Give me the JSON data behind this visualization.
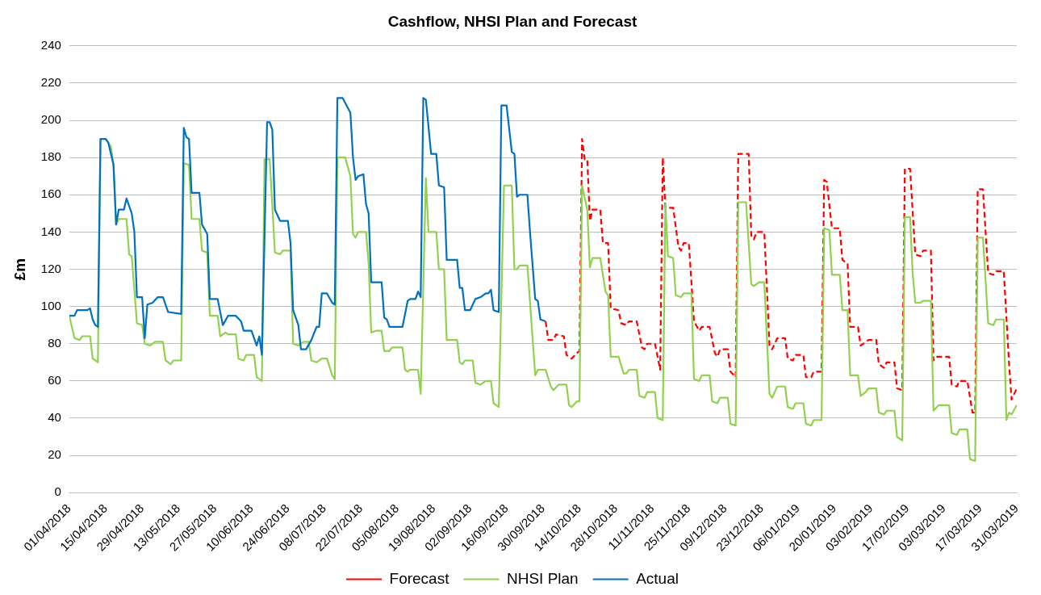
{
  "chart_data": {
    "type": "line",
    "title": "Cashflow, NHSI Plan and Forecast",
    "ylabel": "£m",
    "xlim": [
      "2018-04-01",
      "2019-03-31"
    ],
    "xticks": [
      {
        "value": "2018-04-01",
        "label": "01/04/2018"
      },
      {
        "value": "2018-04-15",
        "label": "15/04/2018"
      },
      {
        "value": "2018-04-29",
        "label": "29/04/2018"
      },
      {
        "value": "2018-05-13",
        "label": "13/05/2018"
      },
      {
        "value": "2018-05-27",
        "label": "27/05/2018"
      },
      {
        "value": "2018-06-10",
        "label": "10/06/2018"
      },
      {
        "value": "2018-06-24",
        "label": "24/06/2018"
      },
      {
        "value": "2018-07-08",
        "label": "08/07/2018"
      },
      {
        "value": "2018-07-22",
        "label": "22/07/2018"
      },
      {
        "value": "2018-08-05",
        "label": "05/08/2018"
      },
      {
        "value": "2018-08-19",
        "label": "19/08/2018"
      },
      {
        "value": "2018-09-02",
        "label": "02/09/2018"
      },
      {
        "value": "2018-09-16",
        "label": "16/09/2018"
      },
      {
        "value": "2018-09-30",
        "label": "30/09/2018"
      },
      {
        "value": "2018-10-14",
        "label": "14/10/2018"
      },
      {
        "value": "2018-10-28",
        "label": "28/10/2018"
      },
      {
        "value": "2018-11-11",
        "label": "11/11/2018"
      },
      {
        "value": "2018-11-25",
        "label": "25/11/2018"
      },
      {
        "value": "2018-12-09",
        "label": "09/12/2018"
      },
      {
        "value": "2018-12-23",
        "label": "23/12/2018"
      },
      {
        "value": "2019-01-06",
        "label": "06/01/2019"
      },
      {
        "value": "2019-01-20",
        "label": "20/01/2019"
      },
      {
        "value": "2019-02-03",
        "label": "03/02/2019"
      },
      {
        "value": "2019-02-17",
        "label": "17/02/2019"
      },
      {
        "value": "2019-03-03",
        "label": "03/03/2019"
      },
      {
        "value": "2019-03-17",
        "label": "17/03/2019"
      },
      {
        "value": "2019-03-31",
        "label": "31/03/2019"
      }
    ],
    "ylim": [
      0,
      240
    ],
    "yticks": [
      0,
      20,
      40,
      60,
      80,
      100,
      120,
      140,
      160,
      180,
      200,
      220,
      240
    ],
    "grid": "y",
    "legend": "bottom",
    "marker": "none",
    "series": [
      {
        "name": "Forecast",
        "color": "#ff0000",
        "line_style": "dashed",
        "x": [
          "2018-10-01",
          "2018-10-02",
          "2018-10-04",
          "2018-10-05",
          "2018-10-08",
          "2018-10-09",
          "2018-10-11",
          "2018-10-13",
          "2018-10-14",
          "2018-10-15",
          "2018-10-16",
          "2018-10-17",
          "2018-10-18",
          "2018-10-19",
          "2018-10-22",
          "2018-10-23",
          "2018-10-25",
          "2018-10-26",
          "2018-10-29",
          "2018-10-30",
          "2018-11-01",
          "2018-11-02",
          "2018-11-05",
          "2018-11-07",
          "2018-11-08",
          "2018-11-09",
          "2018-11-12",
          "2018-11-14",
          "2018-11-15",
          "2018-11-16",
          "2018-11-19",
          "2018-11-21",
          "2018-11-22",
          "2018-11-23",
          "2018-11-25",
          "2018-11-27",
          "2018-11-29",
          "2018-11-30",
          "2018-12-03",
          "2018-12-05",
          "2018-12-06",
          "2018-12-07",
          "2018-12-10",
          "2018-12-11",
          "2018-12-13",
          "2018-12-14",
          "2018-12-18",
          "2018-12-19",
          "2018-12-20",
          "2018-12-21",
          "2018-12-24",
          "2018-12-26",
          "2018-12-27",
          "2018-12-29",
          "2019-01-01",
          "2019-01-02",
          "2019-01-04",
          "2019-01-05",
          "2019-01-08",
          "2019-01-09",
          "2019-01-11",
          "2019-01-12",
          "2019-01-15",
          "2019-01-16",
          "2019-01-17",
          "2019-01-19",
          "2019-01-22",
          "2019-01-23",
          "2019-01-25",
          "2019-01-26",
          "2019-01-29",
          "2019-01-30",
          "2019-02-01",
          "2019-02-02",
          "2019-02-05",
          "2019-02-06",
          "2019-02-08",
          "2019-02-09",
          "2019-02-12",
          "2019-02-13",
          "2019-02-15",
          "2019-02-16",
          "2019-02-18",
          "2019-02-20",
          "2019-02-22",
          "2019-02-23",
          "2019-02-26",
          "2019-02-27",
          "2019-02-28",
          "2019-03-05",
          "2019-03-06",
          "2019-03-08",
          "2019-03-09",
          "2019-03-12",
          "2019-03-14",
          "2019-03-15",
          "2019-03-16",
          "2019-03-18",
          "2019-03-20",
          "2019-03-22",
          "2019-03-23",
          "2019-03-26",
          "2019-03-28",
          "2019-03-29",
          "2019-03-31"
        ],
        "values": [
          92,
          82,
          82,
          85,
          84,
          74,
          72,
          75,
          76,
          190,
          179,
          179,
          146,
          152,
          152,
          134,
          134,
          99,
          98,
          91,
          90,
          92,
          92,
          78,
          77,
          80,
          80,
          66,
          180,
          153,
          153,
          132,
          130,
          134,
          134,
          92,
          87,
          89,
          89,
          75,
          73,
          77,
          77,
          65,
          62,
          182,
          182,
          138,
          136,
          140,
          140,
          79,
          77,
          83,
          83,
          72,
          71,
          74,
          74,
          62,
          62,
          65,
          65,
          168,
          167,
          142,
          142,
          125,
          123,
          89,
          89,
          79,
          81,
          82,
          82,
          69,
          67,
          70,
          70,
          56,
          55,
          174,
          174,
          128,
          127,
          130,
          130,
          71,
          73,
          73,
          58,
          57,
          60,
          60,
          43,
          43,
          163,
          163,
          118,
          117,
          119,
          119,
          70,
          50,
          56
        ]
      },
      {
        "name": "NHSI Plan",
        "color": "#92d050",
        "line_style": "solid",
        "x": [
          "2018-04-01",
          "2018-04-03",
          "2018-04-05",
          "2018-04-06",
          "2018-04-09",
          "2018-04-10",
          "2018-04-11",
          "2018-04-12",
          "2018-04-13",
          "2018-04-15",
          "2018-04-17",
          "2018-04-18",
          "2018-04-19",
          "2018-04-20",
          "2018-04-23",
          "2018-04-24",
          "2018-04-25",
          "2018-04-27",
          "2018-04-29",
          "2018-04-30",
          "2018-05-02",
          "2018-05-04",
          "2018-05-07",
          "2018-05-08",
          "2018-05-10",
          "2018-05-11",
          "2018-05-14",
          "2018-05-15",
          "2018-05-17",
          "2018-05-18",
          "2018-05-21",
          "2018-05-22",
          "2018-05-24",
          "2018-05-25",
          "2018-05-28",
          "2018-05-29",
          "2018-05-31",
          "2018-06-01",
          "2018-06-04",
          "2018-06-05",
          "2018-06-07",
          "2018-06-08",
          "2018-06-11",
          "2018-06-12",
          "2018-06-14",
          "2018-06-15",
          "2018-06-17",
          "2018-06-19",
          "2018-06-21",
          "2018-06-22",
          "2018-06-25",
          "2018-06-26",
          "2018-06-28",
          "2018-06-30",
          "2018-07-02",
          "2018-07-03",
          "2018-07-05",
          "2018-07-07",
          "2018-07-09",
          "2018-07-11",
          "2018-07-12",
          "2018-07-13",
          "2018-07-16",
          "2018-07-18",
          "2018-07-19",
          "2018-07-20",
          "2018-07-21",
          "2018-07-24",
          "2018-07-25",
          "2018-07-26",
          "2018-07-28",
          "2018-07-30",
          "2018-07-31",
          "2018-08-02",
          "2018-08-03",
          "2018-08-07",
          "2018-08-08",
          "2018-08-09",
          "2018-08-10",
          "2018-08-13",
          "2018-08-14",
          "2018-08-16",
          "2018-08-17",
          "2018-08-20",
          "2018-08-21",
          "2018-08-23",
          "2018-08-24",
          "2018-08-28",
          "2018-08-29",
          "2018-08-30",
          "2018-08-31",
          "2018-09-03",
          "2018-09-04",
          "2018-09-06",
          "2018-09-08",
          "2018-09-10",
          "2018-09-11",
          "2018-09-13",
          "2018-09-15",
          "2018-09-18",
          "2018-09-19",
          "2018-09-20",
          "2018-09-21",
          "2018-09-24",
          "2018-09-27",
          "2018-09-28",
          "2018-10-01",
          "2018-10-03",
          "2018-10-04",
          "2018-10-06",
          "2018-10-09",
          "2018-10-10",
          "2018-10-11",
          "2018-10-13",
          "2018-10-14",
          "2018-10-15",
          "2018-10-17",
          "2018-10-18",
          "2018-10-19",
          "2018-10-22",
          "2018-10-24",
          "2018-10-25",
          "2018-10-26",
          "2018-10-29",
          "2018-10-31",
          "2018-11-01",
          "2018-11-02",
          "2018-11-05",
          "2018-11-06",
          "2018-11-08",
          "2018-11-09",
          "2018-11-12",
          "2018-11-13",
          "2018-11-15",
          "2018-11-16",
          "2018-11-17",
          "2018-11-19",
          "2018-11-20",
          "2018-11-22",
          "2018-11-23",
          "2018-11-26",
          "2018-11-27",
          "2018-11-29",
          "2018-11-30",
          "2018-12-03",
          "2018-12-04",
          "2018-12-06",
          "2018-12-07",
          "2018-12-10",
          "2018-12-11",
          "2018-12-13",
          "2018-12-14",
          "2018-12-17",
          "2018-12-19",
          "2018-12-20",
          "2018-12-22",
          "2018-12-24",
          "2018-12-26",
          "2018-12-27",
          "2018-12-29",
          "2019-01-01",
          "2019-01-02",
          "2019-01-04",
          "2019-01-05",
          "2019-01-08",
          "2019-01-09",
          "2019-01-11",
          "2019-01-12",
          "2019-01-15",
          "2019-01-16",
          "2019-01-18",
          "2019-01-19",
          "2019-01-22",
          "2019-01-23",
          "2019-01-25",
          "2019-01-26",
          "2019-01-29",
          "2019-01-30",
          "2019-02-01",
          "2019-02-02",
          "2019-02-05",
          "2019-02-06",
          "2019-02-08",
          "2019-02-09",
          "2019-02-12",
          "2019-02-13",
          "2019-02-15",
          "2019-02-16",
          "2019-02-18",
          "2019-02-19",
          "2019-02-20",
          "2019-02-22",
          "2019-02-23",
          "2019-02-26",
          "2019-02-27",
          "2019-03-01",
          "2019-03-05",
          "2019-03-06",
          "2019-03-08",
          "2019-03-09",
          "2019-03-12",
          "2019-03-13",
          "2019-03-15",
          "2019-03-16",
          "2019-03-18",
          "2019-03-20",
          "2019-03-22",
          "2019-03-23",
          "2019-03-26",
          "2019-03-27",
          "2019-03-28",
          "2019-03-29",
          "2019-03-31"
        ],
        "values": [
          95,
          83,
          82,
          84,
          84,
          72,
          71,
          70,
          190,
          190,
          186,
          176,
          144,
          147,
          147,
          128,
          127,
          91,
          90,
          80,
          79,
          81,
          81,
          71,
          69,
          71,
          71,
          177,
          176,
          147,
          147,
          130,
          129,
          95,
          95,
          84,
          86,
          85,
          85,
          72,
          71,
          74,
          74,
          62,
          60,
          179,
          179,
          129,
          128,
          130,
          130,
          80,
          79,
          81,
          81,
          71,
          70,
          72,
          72,
          63,
          61,
          180,
          180,
          170,
          139,
          137,
          140,
          140,
          123,
          86,
          87,
          87,
          76,
          76,
          78,
          78,
          66,
          65,
          66,
          66,
          53,
          169,
          140,
          140,
          120,
          120,
          82,
          82,
          70,
          69,
          71,
          71,
          59,
          58,
          60,
          60,
          48,
          46,
          165,
          165,
          120,
          120,
          122,
          122,
          63,
          66,
          66,
          57,
          55,
          58,
          58,
          47,
          46,
          49,
          49,
          165,
          152,
          121,
          126,
          126,
          108,
          106,
          73,
          73,
          64,
          64,
          66,
          66,
          52,
          51,
          54,
          54,
          40,
          39,
          155,
          127,
          126,
          106,
          105,
          107,
          107,
          61,
          60,
          63,
          63,
          49,
          48,
          51,
          51,
          37,
          36,
          156,
          156,
          112,
          111,
          113,
          113,
          53,
          51,
          57,
          57,
          46,
          45,
          48,
          48,
          37,
          36,
          39,
          39,
          142,
          141,
          117,
          117,
          98,
          98,
          63,
          63,
          52,
          54,
          56,
          56,
          43,
          42,
          44,
          44,
          30,
          28,
          148,
          148,
          118,
          102,
          102,
          103,
          103,
          44,
          47,
          47,
          32,
          31,
          34,
          34,
          18,
          17,
          137,
          137,
          91,
          90,
          93,
          93,
          39,
          43,
          42,
          47
        ]
      },
      {
        "name": "Actual",
        "color": "#0070c0",
        "line_style": "solid",
        "x": [
          "2018-04-01",
          "2018-04-03",
          "2018-04-04",
          "2018-04-08",
          "2018-04-09",
          "2018-04-10",
          "2018-04-11",
          "2018-04-12",
          "2018-04-13",
          "2018-04-15",
          "2018-04-16",
          "2018-04-18",
          "2018-04-19",
          "2018-04-20",
          "2018-04-22",
          "2018-04-23",
          "2018-04-25",
          "2018-04-26",
          "2018-04-27",
          "2018-04-29",
          "2018-04-30",
          "2018-05-01",
          "2018-05-03",
          "2018-05-05",
          "2018-05-07",
          "2018-05-09",
          "2018-05-14",
          "2018-05-15",
          "2018-05-16",
          "2018-05-17",
          "2018-05-18",
          "2018-05-21",
          "2018-05-22",
          "2018-05-24",
          "2018-05-25",
          "2018-05-28",
          "2018-05-30",
          "2018-06-01",
          "2018-06-04",
          "2018-06-06",
          "2018-06-07",
          "2018-06-10",
          "2018-06-12",
          "2018-06-13",
          "2018-06-14",
          "2018-06-16",
          "2018-06-17",
          "2018-06-18",
          "2018-06-19",
          "2018-06-21",
          "2018-06-24",
          "2018-06-25",
          "2018-06-26",
          "2018-06-28",
          "2018-06-29",
          "2018-07-01",
          "2018-07-03",
          "2018-07-05",
          "2018-07-06",
          "2018-07-07",
          "2018-07-09",
          "2018-07-11",
          "2018-07-12",
          "2018-07-13",
          "2018-07-15",
          "2018-07-18",
          "2018-07-19",
          "2018-07-20",
          "2018-07-21",
          "2018-07-23",
          "2018-07-24",
          "2018-07-25",
          "2018-07-26",
          "2018-07-30",
          "2018-07-31",
          "2018-08-01",
          "2018-08-02",
          "2018-08-07",
          "2018-08-09",
          "2018-08-10",
          "2018-08-12",
          "2018-08-13",
          "2018-08-14",
          "2018-08-15",
          "2018-08-16",
          "2018-08-18",
          "2018-08-20",
          "2018-08-21",
          "2018-08-23",
          "2018-08-24",
          "2018-08-28",
          "2018-08-29",
          "2018-08-30",
          "2018-08-31",
          "2018-09-02",
          "2018-09-04",
          "2018-09-06",
          "2018-09-08",
          "2018-09-09",
          "2018-09-10",
          "2018-09-11",
          "2018-09-13",
          "2018-09-14",
          "2018-09-16",
          "2018-09-18",
          "2018-09-19",
          "2018-09-20",
          "2018-09-21",
          "2018-09-24",
          "2018-09-25",
          "2018-09-27",
          "2018-09-28",
          "2018-09-29",
          "2018-10-01"
        ],
        "values": [
          95,
          95,
          98,
          98,
          99,
          93,
          90,
          89,
          190,
          190,
          188,
          176,
          144,
          152,
          152,
          158,
          150,
          140,
          105,
          105,
          83,
          101,
          102,
          105,
          105,
          97,
          96,
          196,
          191,
          190,
          161,
          161,
          144,
          139,
          104,
          104,
          90,
          95,
          95,
          92,
          87,
          87,
          79,
          84,
          74,
          199,
          199,
          195,
          152,
          146,
          146,
          134,
          98,
          90,
          77,
          77,
          82,
          89,
          89,
          107,
          107,
          102,
          101,
          212,
          212,
          204,
          180,
          168,
          170,
          171,
          155,
          150,
          113,
          113,
          94,
          93,
          89,
          89,
          103,
          104,
          104,
          108,
          105,
          212,
          211,
          182,
          182,
          165,
          164,
          125,
          125,
          110,
          110,
          98,
          98,
          104,
          105,
          107,
          107,
          109,
          98,
          97,
          208,
          208,
          183,
          182,
          159,
          160,
          160,
          140,
          104,
          103,
          93,
          92
        ]
      }
    ]
  }
}
